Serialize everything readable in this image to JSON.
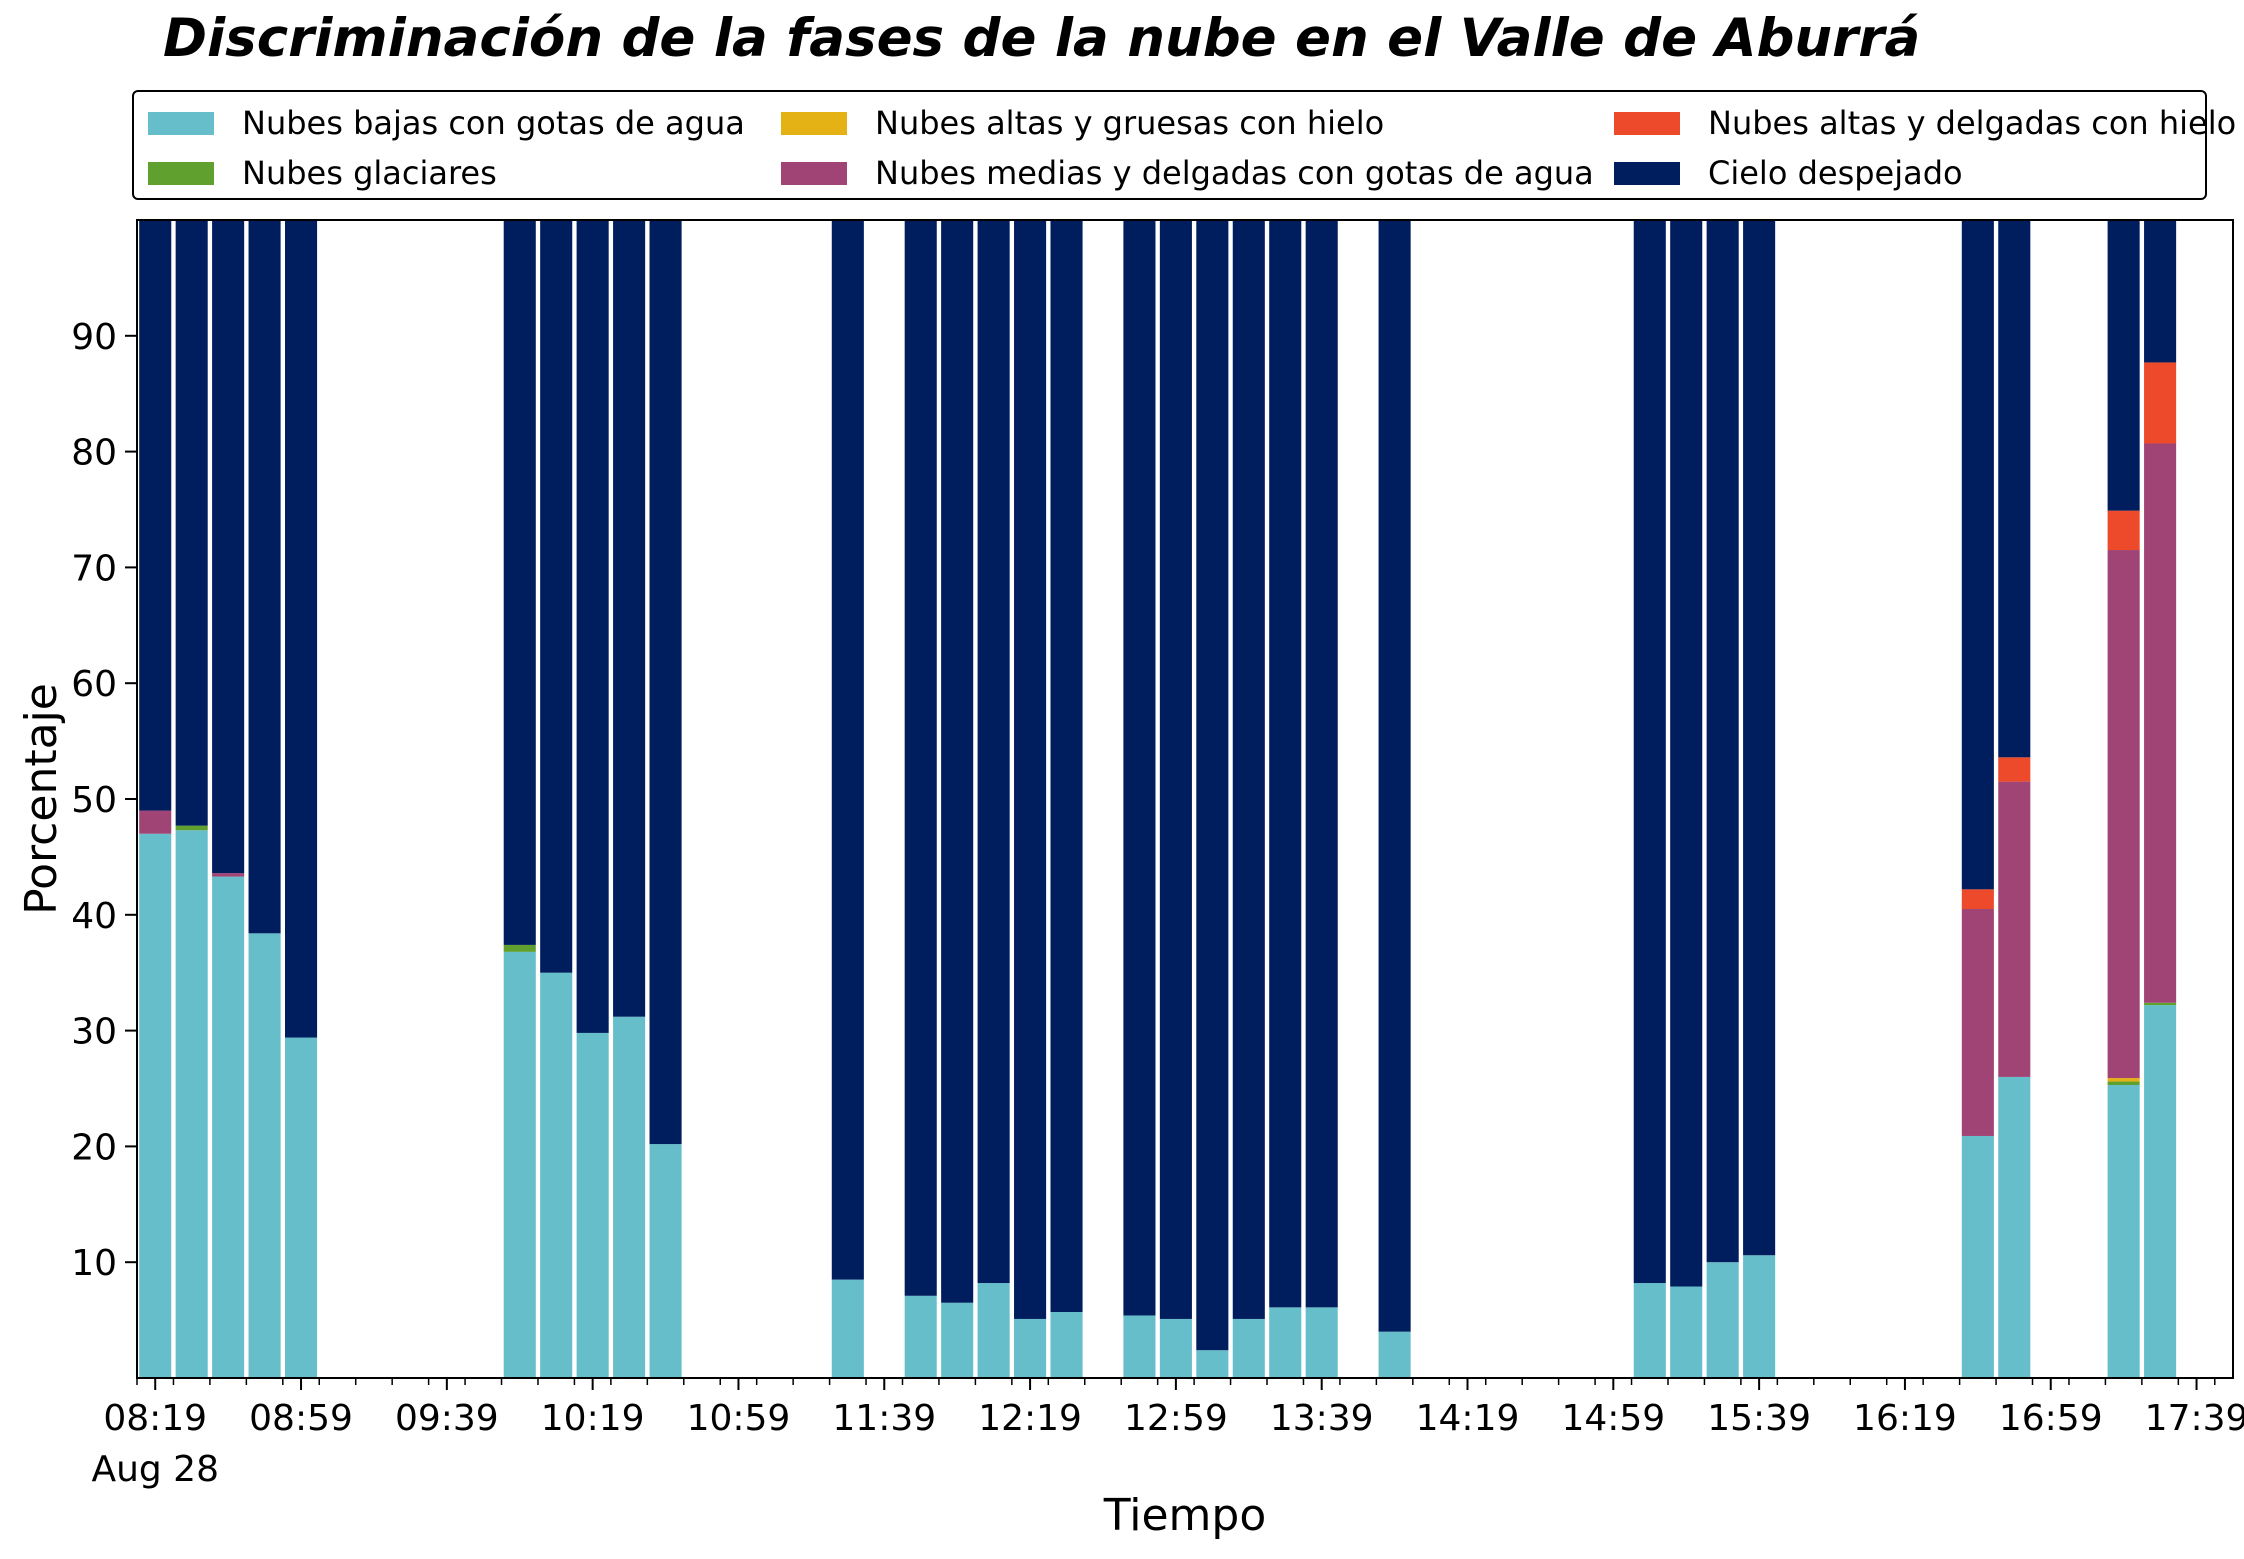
{
  "chart_data": {
    "type": "bar",
    "stacked": true,
    "title": "Discriminación de la fases de la nube en el Valle de Aburrá",
    "xlabel": "Tiempo",
    "ylabel": "Porcentaje",
    "ylim": [
      0,
      100
    ],
    "yticks": [
      10,
      20,
      30,
      40,
      50,
      60,
      70,
      80,
      90
    ],
    "x_range": [
      "08:14",
      "17:49"
    ],
    "x_major_ticks": [
      {
        "time": "08:19",
        "label": "08:19",
        "sublabel": "Aug 28"
      },
      {
        "time": "08:59",
        "label": "08:59"
      },
      {
        "time": "09:39",
        "label": "09:39"
      },
      {
        "time": "10:19",
        "label": "10:19"
      },
      {
        "time": "10:59",
        "label": "10:59"
      },
      {
        "time": "11:39",
        "label": "11:39"
      },
      {
        "time": "12:19",
        "label": "12:19"
      },
      {
        "time": "12:59",
        "label": "12:59"
      },
      {
        "time": "13:39",
        "label": "13:39"
      },
      {
        "time": "14:19",
        "label": "14:19"
      },
      {
        "time": "14:59",
        "label": "14:59"
      },
      {
        "time": "15:39",
        "label": "15:39"
      },
      {
        "time": "16:19",
        "label": "16:19"
      },
      {
        "time": "16:59",
        "label": "16:59"
      },
      {
        "time": "17:39",
        "label": "17:39"
      }
    ],
    "x_minor_tick_interval_minutes": 10,
    "grid": false,
    "legend_position": "top",
    "x": [
      "08:19",
      "08:29",
      "08:39",
      "08:49",
      "08:59",
      "09:59",
      "10:09",
      "10:19",
      "10:29",
      "10:39",
      "11:29",
      "11:49",
      "11:59",
      "12:09",
      "12:19",
      "12:29",
      "12:49",
      "12:59",
      "13:09",
      "13:19",
      "13:29",
      "13:39",
      "13:59",
      "15:09",
      "15:19",
      "15:29",
      "15:39",
      "16:39",
      "16:49",
      "17:19",
      "17:29"
    ],
    "series": [
      {
        "name": "Nubes bajas con gotas de agua",
        "color": "#66BECB",
        "values": [
          47.0,
          47.3,
          43.3,
          38.4,
          29.4,
          36.8,
          35.0,
          29.8,
          31.2,
          20.2,
          8.5,
          7.1,
          6.5,
          8.2,
          5.1,
          5.7,
          5.4,
          5.1,
          2.4,
          5.1,
          6.1,
          6.1,
          4.0,
          8.2,
          7.9,
          10.0,
          10.6,
          20.9,
          26.0,
          25.3,
          32.2
        ]
      },
      {
        "name": "Nubes glaciares",
        "color": "#5FA02E",
        "values": [
          0,
          0.4,
          0,
          0,
          0,
          0.6,
          0,
          0,
          0,
          0,
          0,
          0,
          0,
          0,
          0,
          0,
          0,
          0,
          0,
          0,
          0,
          0,
          0,
          0,
          0,
          0,
          0,
          0,
          0,
          0.3,
          0.2
        ]
      },
      {
        "name": "Nubes altas y gruesas con hielo",
        "color": "#E5B215",
        "values": [
          0,
          0,
          0,
          0,
          0,
          0,
          0,
          0,
          0,
          0,
          0,
          0,
          0,
          0,
          0,
          0,
          0,
          0,
          0,
          0,
          0,
          0,
          0,
          0,
          0,
          0,
          0,
          0,
          0,
          0.3,
          0
        ]
      },
      {
        "name": "Nubes medias y delgadas con gotas de agua",
        "color": "#A04476",
        "values": [
          2.0,
          0,
          0.3,
          0,
          0,
          0,
          0,
          0,
          0,
          0,
          0,
          0,
          0,
          0,
          0,
          0,
          0,
          0,
          0,
          0,
          0,
          0,
          0,
          0,
          0,
          0,
          0,
          19.6,
          25.5,
          45.6,
          48.3
        ]
      },
      {
        "name": "Nubes altas y delgadas con hielo",
        "color": "#EC4A2A",
        "values": [
          0,
          0,
          0,
          0,
          0,
          0,
          0,
          0,
          0,
          0,
          0,
          0,
          0,
          0,
          0,
          0,
          0,
          0,
          0,
          0,
          0,
          0,
          0,
          0,
          0,
          0,
          0,
          1.7,
          2.1,
          3.4,
          7.0
        ]
      },
      {
        "name": "Cielo despejado",
        "color": "#001D5E",
        "values": [
          51.0,
          52.3,
          56.4,
          61.6,
          70.6,
          62.6,
          65.0,
          70.2,
          68.8,
          79.8,
          91.5,
          92.9,
          93.5,
          91.8,
          94.9,
          94.3,
          94.6,
          94.9,
          97.6,
          94.9,
          93.9,
          93.9,
          96.0,
          91.8,
          92.1,
          90.0,
          89.4,
          57.8,
          46.4,
          25.1,
          12.3
        ]
      }
    ]
  },
  "legend_layout": {
    "columns": [
      [
        0,
        1
      ],
      [
        2,
        3
      ],
      [
        4,
        5
      ]
    ]
  }
}
